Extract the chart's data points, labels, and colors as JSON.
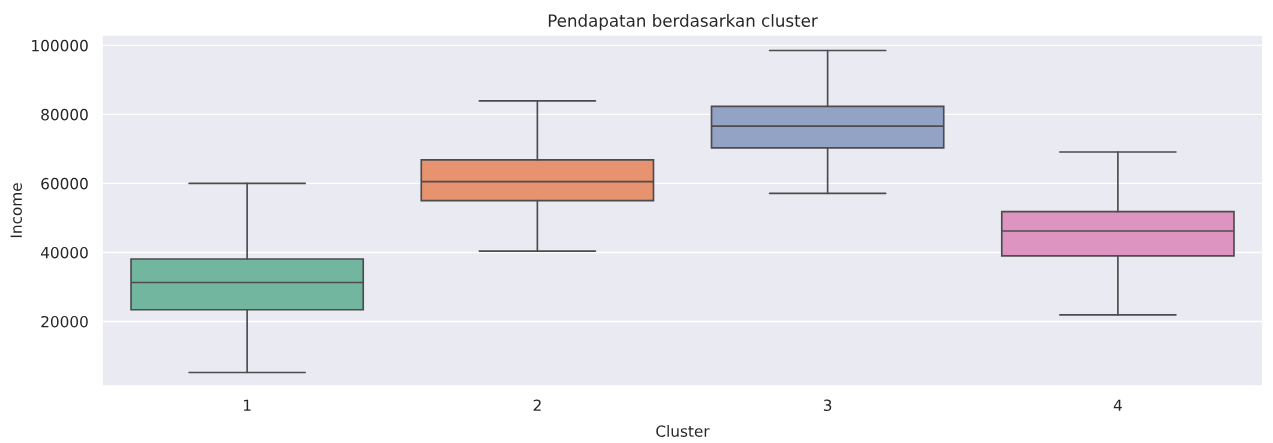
{
  "chart_data": {
    "type": "box",
    "title": "Pendapatan berdasarkan cluster",
    "xlabel": "Cluster",
    "ylabel": "Income",
    "categories": [
      "1",
      "2",
      "3",
      "4"
    ],
    "colors": [
      "#73b6a0",
      "#e8936f",
      "#93a3c5",
      "#dd94c0"
    ],
    "boxes": [
      {
        "low": 5200,
        "q1": 23400,
        "median": 31300,
        "q3": 38100,
        "high": 60000
      },
      {
        "low": 40400,
        "q1": 55000,
        "median": 60500,
        "q3": 66800,
        "high": 83900
      },
      {
        "low": 57100,
        "q1": 70300,
        "median": 76600,
        "q3": 82300,
        "high": 98500
      },
      {
        "low": 21900,
        "q1": 39000,
        "median": 46200,
        "q3": 51800,
        "high": 69100
      }
    ],
    "ylim": [
      1300,
      103000
    ],
    "yticks": [
      20000,
      40000,
      60000,
      80000,
      100000
    ],
    "grid": "y",
    "legend": false
  }
}
